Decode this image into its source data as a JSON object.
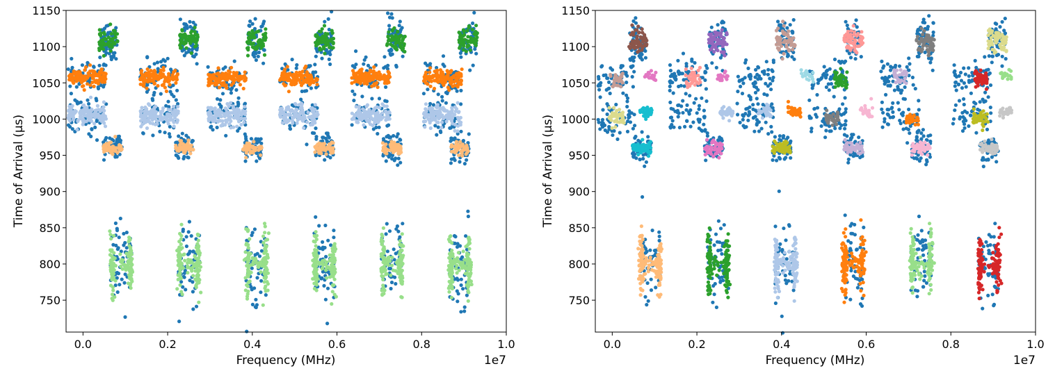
{
  "figure": {
    "background": "#ffffff",
    "palette": "tab20"
  },
  "chart_data": [
    {
      "type": "scatter",
      "xlabel": "Frequency (MHz)",
      "ylabel": "Time of Arrival (µs)",
      "x_offset_label": "1e7",
      "xlim": [
        -400000,
        10000000
      ],
      "ylim": [
        706,
        1150
      ],
      "xticks": [
        0.0,
        0.2,
        0.4,
        0.6,
        0.8,
        1.0
      ],
      "xtick_labels": [
        "0.0",
        "0.2",
        "0.4",
        "0.6",
        "0.8",
        "1.0"
      ],
      "yticks": [
        750,
        800,
        850,
        900,
        950,
        1000,
        1050,
        1100,
        1150
      ],
      "ytick_labels": [
        "750",
        "800",
        "850",
        "900",
        "950",
        "1000",
        "1050",
        "1100",
        "1150"
      ],
      "series": [
        {
          "name": "noise",
          "color": "#1f77b4",
          "noise": true
        },
        {
          "name": "cluster 1100",
          "color": "#2ca02c",
          "toa": 1108,
          "xs": [
            600000,
            2500000,
            4100000,
            5700000,
            7400000,
            9100000
          ],
          "half_width": 220000,
          "spread": 12,
          "points": 60
        },
        {
          "name": "cluster 1055",
          "color": "#ff7f0e",
          "toa": 1057,
          "xs": [
            100000,
            1800000,
            3400000,
            5100000,
            6800000,
            8500000
          ],
          "half_width": 450000,
          "spread": 8,
          "points": 120
        },
        {
          "name": "cluster 1005",
          "color": "#aec7e8",
          "toa": 1005,
          "xs": [
            100000,
            1800000,
            3400000,
            5100000,
            6800000,
            8500000
          ],
          "half_width": 450000,
          "spread": 10,
          "points": 120
        },
        {
          "name": "cluster 960",
          "color": "#ffbb78",
          "toa": 960,
          "xs": [
            700000,
            2400000,
            4000000,
            5700000,
            7300000,
            8900000
          ],
          "half_width": 220000,
          "spread": 6,
          "points": 50
        },
        {
          "name": "cluster 800",
          "color": "#98df8a",
          "toa": 800,
          "xs": [
            900000,
            2500000,
            4100000,
            5700000,
            7300000,
            8900000
          ],
          "half_width": 250000,
          "spread": 20,
          "points": 140,
          "h_shape": true
        }
      ]
    },
    {
      "type": "scatter",
      "xlabel": "Frequency (MHz)",
      "ylabel": "Time of Arrival (µs)",
      "x_offset_label": "1e7",
      "xlim": [
        -400000,
        10000000
      ],
      "ylim": [
        706,
        1150
      ],
      "xticks": [
        0.0,
        0.2,
        0.4,
        0.6,
        0.8,
        1.0
      ],
      "xtick_labels": [
        "0.0",
        "0.2",
        "0.4",
        "0.6",
        "0.8",
        "1.0"
      ],
      "yticks": [
        750,
        800,
        850,
        900,
        950,
        1000,
        1050,
        1100,
        1150
      ],
      "ytick_labels": [
        "750",
        "800",
        "850",
        "900",
        "950",
        "1000",
        "1050",
        "1100",
        "1150"
      ],
      "series": [
        {
          "name": "noise",
          "color": "#1f77b4",
          "noise": true
        },
        {
          "name": "cluster 1100 a",
          "color": "#8c564b",
          "toa": 1108,
          "xs": [
            600000
          ],
          "half_width": 220000,
          "spread": 12,
          "points": 60
        },
        {
          "name": "cluster 1100 b",
          "color": "#9467bd",
          "toa": 1108,
          "xs": [
            2500000
          ],
          "half_width": 220000,
          "spread": 12,
          "points": 60
        },
        {
          "name": "cluster 1100 c",
          "color": "#c49c94",
          "toa": 1108,
          "xs": [
            4100000
          ],
          "half_width": 220000,
          "spread": 12,
          "points": 60
        },
        {
          "name": "cluster 1100 d",
          "color": "#ff9896",
          "toa": 1108,
          "xs": [
            5700000
          ],
          "half_width": 220000,
          "spread": 12,
          "points": 60
        },
        {
          "name": "cluster 1100 e",
          "color": "#7f7f7f",
          "toa": 1108,
          "xs": [
            7400000
          ],
          "half_width": 220000,
          "spread": 12,
          "points": 60
        },
        {
          "name": "cluster 1100 f",
          "color": "#dbdb8d",
          "toa": 1108,
          "xs": [
            9100000
          ],
          "half_width": 220000,
          "spread": 12,
          "points": 60
        },
        {
          "name": "cluster 960 a",
          "color": "#17becf",
          "toa": 960,
          "xs": [
            700000
          ],
          "half_width": 220000,
          "spread": 7,
          "points": 50
        },
        {
          "name": "cluster 960 b",
          "color": "#e377c2",
          "toa": 960,
          "xs": [
            2400000
          ],
          "half_width": 220000,
          "spread": 7,
          "points": 50
        },
        {
          "name": "cluster 960 c",
          "color": "#bcbd22",
          "toa": 960,
          "xs": [
            4000000
          ],
          "half_width": 220000,
          "spread": 5,
          "points": 50
        },
        {
          "name": "cluster 960 d",
          "color": "#c5b0d5",
          "toa": 960,
          "xs": [
            5700000
          ],
          "half_width": 220000,
          "spread": 6,
          "points": 50
        },
        {
          "name": "cluster 960 e",
          "color": "#f7b6d2",
          "toa": 960,
          "xs": [
            7300000
          ],
          "half_width": 220000,
          "spread": 6,
          "points": 50
        },
        {
          "name": "cluster 960 f",
          "color": "#c7c7c7",
          "toa": 960,
          "xs": [
            8900000
          ],
          "half_width": 220000,
          "spread": 6,
          "points": 50
        },
        {
          "name": "cluster 1055 a",
          "color": "#c49c94",
          "toa": 1055,
          "xs": [
            100000
          ],
          "half_width": 150000,
          "spread": 8,
          "points": 30
        },
        {
          "name": "cluster 1055 b",
          "color": "#ff9896",
          "toa": 1058,
          "xs": [
            1900000
          ],
          "half_width": 180000,
          "spread": 8,
          "points": 35
        },
        {
          "name": "cluster 1055 c",
          "color": "#9edae5",
          "toa": 1060,
          "xs": [
            4600000
          ],
          "half_width": 150000,
          "spread": 6,
          "points": 25
        },
        {
          "name": "cluster 1055 d",
          "color": "#2ca02c",
          "toa": 1055,
          "xs": [
            5400000
          ],
          "half_width": 150000,
          "spread": 8,
          "points": 40
        },
        {
          "name": "cluster 1055 e",
          "color": "#c5b0d5",
          "toa": 1058,
          "xs": [
            6800000
          ],
          "half_width": 150000,
          "spread": 7,
          "points": 30
        },
        {
          "name": "cluster 1055 f",
          "color": "#d62728",
          "toa": 1055,
          "xs": [
            8700000
          ],
          "half_width": 150000,
          "spread": 7,
          "points": 45
        },
        {
          "name": "cluster 1055 g",
          "color": "#e377c2",
          "toa": 1060,
          "xs": [
            900000,
            2600000
          ],
          "half_width": 130000,
          "spread": 5,
          "points": 20
        },
        {
          "name": "cluster 1055 h",
          "color": "#98df8a",
          "toa": 1060,
          "xs": [
            9300000
          ],
          "half_width": 130000,
          "spread": 5,
          "points": 20
        },
        {
          "name": "cluster 1005 a",
          "color": "#dbdb8d",
          "toa": 1000,
          "xs": [
            100000
          ],
          "half_width": 180000,
          "spread": 8,
          "points": 40
        },
        {
          "name": "cluster 1005 b",
          "color": "#17becf",
          "toa": 1010,
          "xs": [
            800000
          ],
          "half_width": 150000,
          "spread": 6,
          "points": 30
        },
        {
          "name": "cluster 1005 c",
          "color": "#aec7e8",
          "toa": 1010,
          "xs": [
            2700000,
            3600000
          ],
          "half_width": 150000,
          "spread": 6,
          "points": 30
        },
        {
          "name": "cluster 1005 d",
          "color": "#ff7f0e",
          "toa": 1010,
          "xs": [
            4300000
          ],
          "half_width": 150000,
          "spread": 8,
          "points": 35
        },
        {
          "name": "cluster 1005 e",
          "color": "#7f7f7f",
          "toa": 1000,
          "xs": [
            5200000
          ],
          "half_width": 150000,
          "spread": 8,
          "points": 35
        },
        {
          "name": "cluster 1005 f",
          "color": "#f7b6d2",
          "toa": 1010,
          "xs": [
            6000000
          ],
          "half_width": 150000,
          "spread": 6,
          "points": 25
        },
        {
          "name": "cluster 1005 g",
          "color": "#ff7f0e",
          "toa": 1000,
          "xs": [
            7100000
          ],
          "half_width": 150000,
          "spread": 5,
          "points": 30
        },
        {
          "name": "cluster 1005 h",
          "color": "#bcbd22",
          "toa": 1000,
          "xs": [
            8700000
          ],
          "half_width": 180000,
          "spread": 8,
          "points": 40
        },
        {
          "name": "cluster 1005 i",
          "color": "#c7c7c7",
          "toa": 1010,
          "xs": [
            9300000
          ],
          "half_width": 150000,
          "spread": 6,
          "points": 25
        },
        {
          "name": "cluster 800 a",
          "color": "#ffbb78",
          "toa": 800,
          "xs": [
            900000
          ],
          "half_width": 250000,
          "spread": 20,
          "points": 140,
          "h_shape": true
        },
        {
          "name": "cluster 800 b",
          "color": "#2ca02c",
          "toa": 800,
          "xs": [
            2500000
          ],
          "half_width": 250000,
          "spread": 20,
          "points": 140,
          "h_shape": true
        },
        {
          "name": "cluster 800 c",
          "color": "#aec7e8",
          "toa": 800,
          "xs": [
            4100000
          ],
          "half_width": 250000,
          "spread": 20,
          "points": 140,
          "h_shape": true
        },
        {
          "name": "cluster 800 d",
          "color": "#ff7f0e",
          "toa": 800,
          "xs": [
            5700000
          ],
          "half_width": 250000,
          "spread": 20,
          "points": 140,
          "h_shape": true
        },
        {
          "name": "cluster 800 e",
          "color": "#98df8a",
          "toa": 800,
          "xs": [
            7300000
          ],
          "half_width": 250000,
          "spread": 20,
          "points": 140,
          "h_shape": true
        },
        {
          "name": "cluster 800 f",
          "color": "#d62728",
          "toa": 800,
          "xs": [
            8900000
          ],
          "half_width": 250000,
          "spread": 20,
          "points": 140,
          "h_shape": true
        }
      ]
    }
  ]
}
